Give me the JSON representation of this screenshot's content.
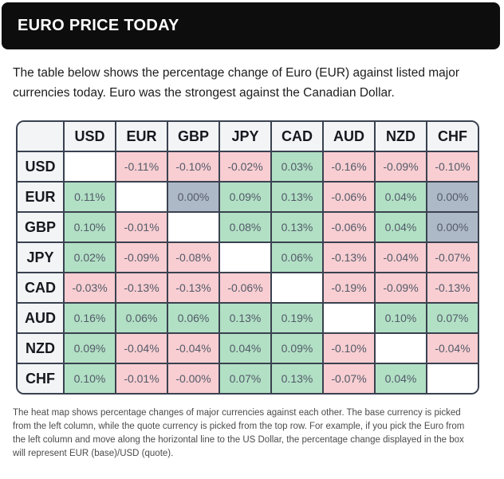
{
  "header": {
    "title": "EURO PRICE TODAY"
  },
  "intro": {
    "lines": [
      "The table below shows the percentage change of Euro (EUR) against listed major",
      "currencies today. Euro was the strongest against the Canadian Dollar."
    ]
  },
  "heatmap": {
    "col_headers": [
      "USD",
      "EUR",
      "GBP",
      "JPY",
      "CAD",
      "AUD",
      "NZD",
      "CHF"
    ],
    "rows": [
      {
        "label": "USD",
        "cells": [
          {
            "text": "",
            "type": "self"
          },
          {
            "text": "-0.11%",
            "type": "neg"
          },
          {
            "text": "-0.10%",
            "type": "neg"
          },
          {
            "text": "-0.02%",
            "type": "neg"
          },
          {
            "text": "0.03%",
            "type": "pos"
          },
          {
            "text": "-0.16%",
            "type": "neg"
          },
          {
            "text": "-0.09%",
            "type": "neg"
          },
          {
            "text": "-0.10%",
            "type": "neg"
          }
        ]
      },
      {
        "label": "EUR",
        "cells": [
          {
            "text": "0.11%",
            "type": "pos"
          },
          {
            "text": "",
            "type": "self"
          },
          {
            "text": "0.00%",
            "type": "zero"
          },
          {
            "text": "0.09%",
            "type": "pos"
          },
          {
            "text": "0.13%",
            "type": "pos"
          },
          {
            "text": "-0.06%",
            "type": "neg"
          },
          {
            "text": "0.04%",
            "type": "pos"
          },
          {
            "text": "0.00%",
            "type": "zero"
          }
        ]
      },
      {
        "label": "GBP",
        "cells": [
          {
            "text": "0.10%",
            "type": "pos"
          },
          {
            "text": "-0.01%",
            "type": "neg"
          },
          {
            "text": "",
            "type": "self"
          },
          {
            "text": "0.08%",
            "type": "pos"
          },
          {
            "text": "0.13%",
            "type": "pos"
          },
          {
            "text": "-0.06%",
            "type": "neg"
          },
          {
            "text": "0.04%",
            "type": "pos"
          },
          {
            "text": "0.00%",
            "type": "zero"
          }
        ]
      },
      {
        "label": "JPY",
        "cells": [
          {
            "text": "0.02%",
            "type": "pos"
          },
          {
            "text": "-0.09%",
            "type": "neg"
          },
          {
            "text": "-0.08%",
            "type": "neg"
          },
          {
            "text": "",
            "type": "self"
          },
          {
            "text": "0.06%",
            "type": "pos"
          },
          {
            "text": "-0.13%",
            "type": "neg"
          },
          {
            "text": "-0.04%",
            "type": "neg"
          },
          {
            "text": "-0.07%",
            "type": "neg"
          }
        ]
      },
      {
        "label": "CAD",
        "cells": [
          {
            "text": "-0.03%",
            "type": "neg"
          },
          {
            "text": "-0.13%",
            "type": "neg"
          },
          {
            "text": "-0.13%",
            "type": "neg"
          },
          {
            "text": "-0.06%",
            "type": "neg"
          },
          {
            "text": "",
            "type": "self"
          },
          {
            "text": "-0.19%",
            "type": "neg"
          },
          {
            "text": "-0.09%",
            "type": "neg"
          },
          {
            "text": "-0.13%",
            "type": "neg"
          }
        ]
      },
      {
        "label": "AUD",
        "cells": [
          {
            "text": "0.16%",
            "type": "pos"
          },
          {
            "text": "0.06%",
            "type": "pos"
          },
          {
            "text": "0.06%",
            "type": "pos"
          },
          {
            "text": "0.13%",
            "type": "pos"
          },
          {
            "text": "0.19%",
            "type": "pos"
          },
          {
            "text": "",
            "type": "self"
          },
          {
            "text": "0.10%",
            "type": "pos"
          },
          {
            "text": "0.07%",
            "type": "pos"
          }
        ]
      },
      {
        "label": "NZD",
        "cells": [
          {
            "text": "0.09%",
            "type": "pos"
          },
          {
            "text": "-0.04%",
            "type": "neg"
          },
          {
            "text": "-0.04%",
            "type": "neg"
          },
          {
            "text": "0.04%",
            "type": "pos"
          },
          {
            "text": "0.09%",
            "type": "pos"
          },
          {
            "text": "-0.10%",
            "type": "neg"
          },
          {
            "text": "",
            "type": "self"
          },
          {
            "text": "-0.04%",
            "type": "neg"
          }
        ]
      },
      {
        "label": "CHF",
        "cells": [
          {
            "text": "0.10%",
            "type": "pos"
          },
          {
            "text": "-0.01%",
            "type": "neg"
          },
          {
            "text": "-0.00%",
            "type": "neg"
          },
          {
            "text": "0.07%",
            "type": "pos"
          },
          {
            "text": "0.13%",
            "type": "pos"
          },
          {
            "text": "-0.07%",
            "type": "neg"
          },
          {
            "text": "0.04%",
            "type": "pos"
          },
          {
            "text": "",
            "type": "self"
          }
        ]
      }
    ]
  },
  "footer": {
    "lines": [
      "The heat map shows percentage changes of major currencies against each other. The base currency is picked",
      "from the left column, while the quote currency is picked from the top row. For example, if you pick the Euro from",
      "the left column and move along the horizontal line to the US Dollar, the percentage change displayed in the box",
      "will represent EUR (base)/USD (quote)."
    ]
  },
  "colors": {
    "positive": "#b2e0c5",
    "negative": "#f8ced2",
    "zero": "#aeb9c8",
    "border": "#3a4150",
    "title_bar": "#0d0d0d"
  },
  "chart_data": {
    "type": "heatmap",
    "title": "EURO PRICE TODAY",
    "row_labels": [
      "USD",
      "EUR",
      "GBP",
      "JPY",
      "CAD",
      "AUD",
      "NZD",
      "CHF"
    ],
    "col_labels": [
      "USD",
      "EUR",
      "GBP",
      "JPY",
      "CAD",
      "AUD",
      "NZD",
      "CHF"
    ],
    "unit": "percent",
    "values_percent": [
      [
        null,
        -0.11,
        -0.1,
        -0.02,
        0.03,
        -0.16,
        -0.09,
        -0.1
      ],
      [
        0.11,
        null,
        0.0,
        0.09,
        0.13,
        -0.06,
        0.04,
        0.0
      ],
      [
        0.1,
        -0.01,
        null,
        0.08,
        0.13,
        -0.06,
        0.04,
        0.0
      ],
      [
        0.02,
        -0.09,
        -0.08,
        null,
        0.06,
        -0.13,
        -0.04,
        -0.07
      ],
      [
        -0.03,
        -0.13,
        -0.13,
        -0.06,
        null,
        -0.19,
        -0.09,
        -0.13
      ],
      [
        0.16,
        0.06,
        0.06,
        0.13,
        0.19,
        null,
        0.1,
        0.07
      ],
      [
        0.09,
        -0.04,
        -0.04,
        0.04,
        0.09,
        -0.1,
        null,
        -0.04
      ],
      [
        0.1,
        -0.01,
        -0.0,
        0.07,
        0.13,
        -0.07,
        0.04,
        null
      ]
    ],
    "legend": {
      "positive": "green",
      "negative": "pink",
      "zero_unchanged": "gray-blue",
      "diagonal": "blank"
    },
    "notes": "Rows are base currency, columns are quote currency"
  }
}
